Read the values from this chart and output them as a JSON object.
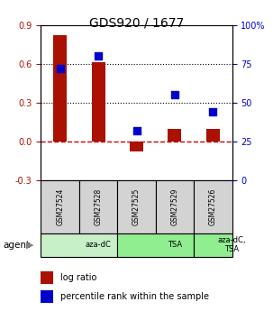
{
  "title": "GDS920 / 1677",
  "samples": [
    "GSM27524",
    "GSM27528",
    "GSM27525",
    "GSM27529",
    "GSM27526"
  ],
  "log_ratios": [
    0.82,
    0.61,
    -0.08,
    0.1,
    0.1
  ],
  "percentile_ranks": [
    72,
    80,
    32,
    55,
    44
  ],
  "agent_groups": [
    {
      "label": "aza-dC",
      "span": [
        0,
        2
      ],
      "color": "#c8f0c8"
    },
    {
      "label": "TSA",
      "span": [
        2,
        4
      ],
      "color": "#90ee90"
    },
    {
      "label": "aza-dC,\nTSA",
      "span": [
        4,
        5
      ],
      "color": "#90ee90"
    }
  ],
  "ylim_left": [
    -0.3,
    0.9
  ],
  "ylim_right": [
    0,
    100
  ],
  "yticks_left": [
    -0.3,
    0.0,
    0.3,
    0.6,
    0.9
  ],
  "yticks_right": [
    0,
    25,
    50,
    75,
    100
  ],
  "bar_color": "#aa1100",
  "dot_color": "#0000cc",
  "zero_line_color": "#cc0000",
  "grid_color": "#000000",
  "background_color": "#ffffff",
  "plot_bg": "#ffffff",
  "bar_width": 0.35,
  "dot_size": 40,
  "sample_box_color": "#d3d3d3"
}
